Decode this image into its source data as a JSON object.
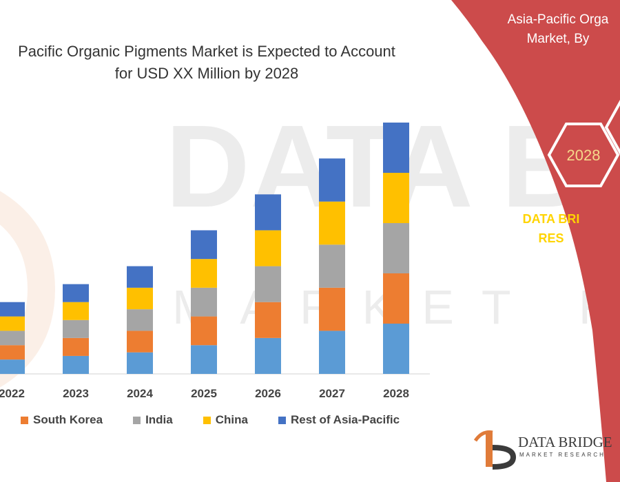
{
  "header": {
    "title_line1": "Pacific Organic Pigments Market is Expected to Account",
    "title_line2": "for USD XX Million by 2028"
  },
  "side_panel": {
    "title_line1": "Asia-Pacific Orga",
    "title_line2": "Market, By",
    "hex_label": "2028",
    "brand_line1": "DATA BRI",
    "brand_line2": "RES",
    "panel_color": "#cc4b4b",
    "brand_color": "#ffd400"
  },
  "logo": {
    "name": "DATA BRIDGE",
    "sub": "MARKET RESEARCH",
    "icon": "data-bridge-logo-icon"
  },
  "chart_data": {
    "type": "bar",
    "stacked": true,
    "categories": [
      "2022",
      "2023",
      "2024",
      "2025",
      "2026",
      "2027",
      "2028"
    ],
    "series": [
      {
        "name": "",
        "color": "#5b9bd5",
        "values": [
          20,
          25,
          30,
          40,
          50,
          60,
          70
        ]
      },
      {
        "name": "South Korea",
        "color": "#ed7d31",
        "values": [
          20,
          25,
          30,
          40,
          50,
          60,
          70
        ]
      },
      {
        "name": "India",
        "color": "#a5a5a5",
        "values": [
          20,
          25,
          30,
          40,
          50,
          60,
          70
        ]
      },
      {
        "name": "China",
        "color": "#ffc000",
        "values": [
          20,
          25,
          30,
          40,
          50,
          60,
          70
        ]
      },
      {
        "name": "Rest of Asia-Pacific",
        "color": "#4472c4",
        "values": [
          20,
          25,
          30,
          40,
          50,
          60,
          70
        ]
      }
    ],
    "ylim": [
      0,
      350
    ],
    "grid": false,
    "legend_position": "bottom"
  }
}
